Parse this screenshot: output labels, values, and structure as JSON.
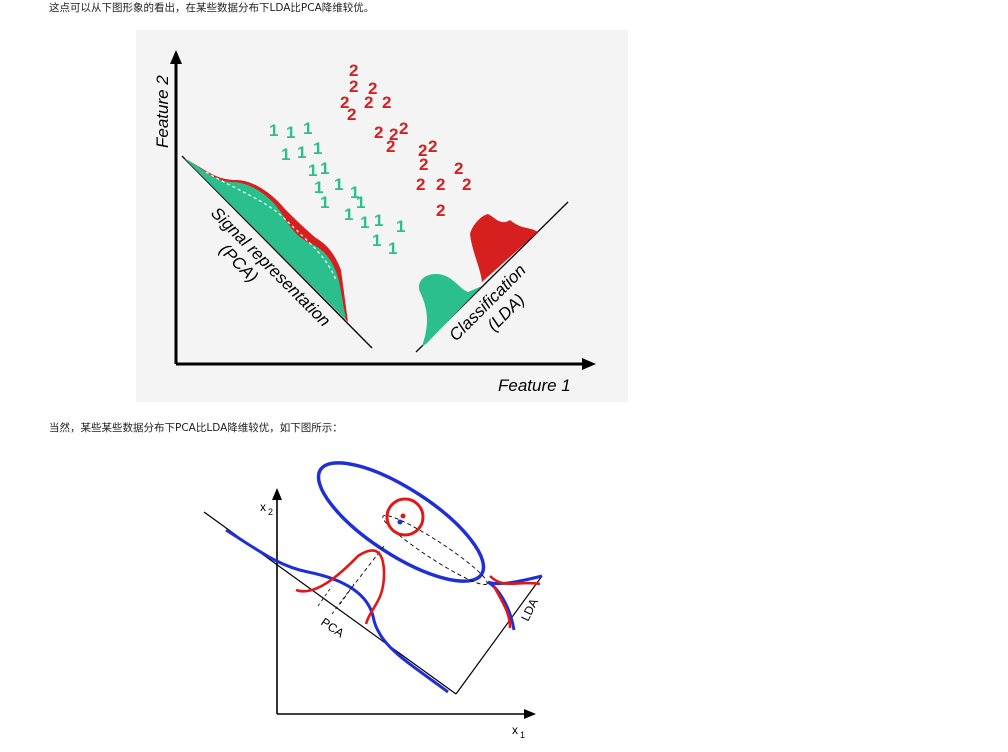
{
  "paragraphs": {
    "intro": "这点可以从下图形象的看出，在某些数据分布下LDA比PCA降维较优。",
    "second": "当然，某些某些数据分布下PCA比LDA降维较优，如下图所示："
  },
  "figure1": {
    "x_axis_label": "Feature 1",
    "y_axis_label": "Feature 2",
    "pca_label_line1": "Signal representation",
    "pca_label_line2": "(PCA)",
    "lda_label_line1": "Classification",
    "lda_label_line2": "(LDA)",
    "class1_symbol": "1",
    "class2_symbol": "2",
    "class1_color": "#2bbf8e",
    "class2_color": "#d62020"
  },
  "figure2": {
    "x_axis_label": "x",
    "x_axis_subscript": "1",
    "y_axis_label": "x",
    "y_axis_subscript": "2",
    "pca_label": "PCA",
    "lda_label": "LDA",
    "blue_color": "#1f2fd6",
    "red_color": "#e01818"
  }
}
